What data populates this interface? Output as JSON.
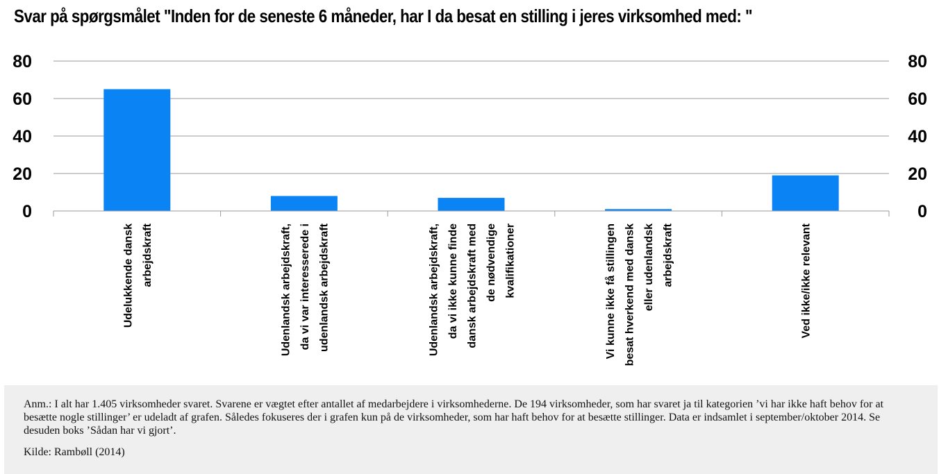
{
  "title": "Svar på spørgsmålet \"Inden for de seneste 6 måneder, har I da besat en stilling i jeres virksomhed med: \"",
  "chart_data": {
    "type": "bar",
    "categories": [
      [
        "Udelukkende dansk",
        "arbejdskraft"
      ],
      [
        "Udenlandsk arbejdskraft,",
        "da vi var interesserede i",
        "udenlandsk arbejdskraft"
      ],
      [
        "Udenlandsk arbejdskraft,",
        "da vi ikke kunne finde",
        "dansk arbejdskraft med",
        "de nødvendige",
        "kvalifikationer"
      ],
      [
        "Vi kunne ikke få stillingen",
        "besat hverkend med dansk",
        "eller udenlandsk",
        "arbejdskraft"
      ],
      [
        "Ved ikke/ikke relevant"
      ]
    ],
    "values": [
      65,
      8,
      7,
      1,
      19
    ],
    "ylim": [
      0,
      80
    ],
    "yticks": [
      "0",
      "20",
      "40",
      "60",
      "80"
    ],
    "ytick_values": [
      0,
      20,
      40,
      60,
      80
    ],
    "right_axis": true,
    "grid": true,
    "bar_color": "#0a84f5"
  },
  "note": "Anm.: I alt har 1.405 virksomheder svaret. Svarene er vægtet efter antallet af medarbejdere i virksomhederne. De 194 virksomheder, som har svaret ja til kategorien ’vi har ikke haft behov for at besætte nogle stillinger’ er udeladt af grafen. Således fokuseres der i grafen kun på de virksomheder, som har haft behov for at besætte stillinger. Data er indsamlet i september/oktober 2014. Se desuden boks ’Sådan har vi gjort’.",
  "source": "Kilde: Rambøll (2014)"
}
